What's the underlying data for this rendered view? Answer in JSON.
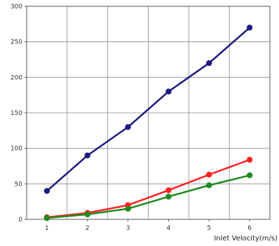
{
  "chart_data": {
    "type": "line",
    "title": "",
    "xlabel": "Inlet Velocity(m/s)",
    "ylabel": "",
    "x": [
      1,
      2,
      3,
      4,
      5,
      6
    ],
    "xlim": [
      0.5,
      6.5
    ],
    "ylim": [
      0,
      300
    ],
    "x_ticks": [
      "1",
      "2",
      "3",
      "4",
      "5",
      "6"
    ],
    "y_ticks": [
      "0",
      "50",
      "100",
      "150",
      "200",
      "250",
      "300"
    ],
    "grid": true,
    "legend": "none",
    "series": [
      {
        "color": "#1a1a80",
        "values": [
          40,
          90,
          130,
          180,
          220,
          270
        ]
      },
      {
        "color": "#ff2020",
        "values": [
          3,
          9,
          20,
          41,
          63,
          84
        ]
      },
      {
        "color": "#1f8a1f",
        "values": [
          2,
          7,
          15,
          32,
          48,
          62
        ]
      }
    ]
  }
}
